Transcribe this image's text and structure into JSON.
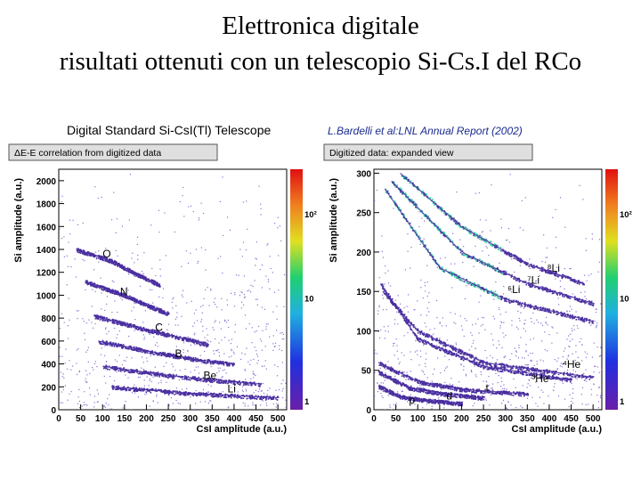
{
  "slide": {
    "title_line1": "Elettronica digitale",
    "title_line2": "risultati ottenuti con un telescopio Si-Cs.I del RCo",
    "subtitle": "Digital Standard Si-CsI(Tl) Telescope",
    "reference": "L.Bardelli et al:LNL Annual Report (2002)"
  },
  "colors": {
    "scatter": "#4a2fa0",
    "scatter_light": "#8a6fd0",
    "band_high": "#2bd0a0",
    "frame": "#000000",
    "panel_header": "#dfdfdf"
  },
  "chart_data": [
    {
      "type": "scatter",
      "title": "ΔE-E correlation from digitized data",
      "xlabel": "CsI amplitude (a.u.)",
      "ylabel": "Si amplitude (a.u.)",
      "xlim": [
        0,
        520
      ],
      "ylim": [
        0,
        2100
      ],
      "xticks": [
        0,
        50,
        100,
        150,
        200,
        250,
        300,
        350,
        400,
        450,
        500
      ],
      "yticks": [
        0,
        200,
        400,
        600,
        800,
        1000,
        1200,
        1400,
        1600,
        1800,
        2000
      ],
      "colorbar_ticks": [
        "1",
        "10",
        "10²"
      ],
      "series": [
        {
          "name": "O",
          "x": [
            40,
            120,
            180,
            230
          ],
          "y": [
            1400,
            1300,
            1180,
            1090
          ]
        },
        {
          "name": "N",
          "x": [
            60,
            150,
            210,
            250
          ],
          "y": [
            1120,
            1000,
            900,
            840
          ]
        },
        {
          "name": "C",
          "x": [
            80,
            200,
            300,
            340
          ],
          "y": [
            820,
            700,
            610,
            570
          ]
        },
        {
          "name": "B",
          "x": [
            90,
            220,
            330,
            400
          ],
          "y": [
            600,
            500,
            430,
            400
          ]
        },
        {
          "name": "Be",
          "x": [
            100,
            250,
            380,
            460
          ],
          "y": [
            380,
            300,
            250,
            225
          ]
        },
        {
          "name": "Li",
          "x": [
            120,
            280,
            420,
            500
          ],
          "y": [
            200,
            150,
            120,
            105
          ]
        }
      ],
      "annotations": [
        {
          "text": "O",
          "x": 100,
          "y": 1330
        },
        {
          "text": "N",
          "x": 140,
          "y": 1000
        },
        {
          "text": "C",
          "x": 220,
          "y": 690
        },
        {
          "text": "B",
          "x": 265,
          "y": 460
        },
        {
          "text": "Be",
          "x": 330,
          "y": 270
        },
        {
          "text": "Li",
          "x": 385,
          "y": 150
        }
      ]
    },
    {
      "type": "scatter",
      "title": "Digitized data: expanded view",
      "xlabel": "CsI amplitude (a.u.)",
      "ylabel": "Si amplitude (a.u.)",
      "xlim": [
        0,
        520
      ],
      "ylim": [
        0,
        305
      ],
      "xticks": [
        0,
        50,
        100,
        150,
        200,
        250,
        300,
        350,
        400,
        450,
        500
      ],
      "yticks": [
        0,
        50,
        100,
        150,
        200,
        250,
        300
      ],
      "colorbar_ticks": [
        "1",
        "10",
        "10²"
      ],
      "series": [
        {
          "name": "8Li",
          "x": [
            60,
            200,
            350,
            480
          ],
          "y": [
            300,
            232,
            185,
            160
          ]
        },
        {
          "name": "7Li",
          "x": [
            40,
            200,
            350,
            500
          ],
          "y": [
            290,
            200,
            160,
            135
          ]
        },
        {
          "name": "6Li",
          "x": [
            25,
            150,
            300,
            500
          ],
          "y": [
            280,
            180,
            140,
            112
          ]
        },
        {
          "name": "4He",
          "x": [
            20,
            100,
            250,
            500
          ],
          "y": [
            150,
            100,
            60,
            41
          ]
        },
        {
          "name": "3He",
          "x": [
            15,
            100,
            250,
            450
          ],
          "y": [
            160,
            90,
            55,
            38
          ]
        },
        {
          "name": "t",
          "x": [
            10,
            100,
            200,
            350
          ],
          "y": [
            60,
            36,
            26,
            20
          ]
        },
        {
          "name": "d",
          "x": [
            10,
            80,
            150,
            250
          ],
          "y": [
            48,
            28,
            21,
            15
          ]
        },
        {
          "name": "p",
          "x": [
            10,
            60,
            120,
            200
          ],
          "y": [
            30,
            17,
            12,
            8
          ]
        }
      ],
      "annotations": [
        {
          "text": "⁸Li",
          "x": 395,
          "y": 175
        },
        {
          "text": "⁷Li",
          "x": 350,
          "y": 160
        },
        {
          "text": "⁶Li",
          "x": 305,
          "y": 148
        },
        {
          "text": "⁴He",
          "x": 430,
          "y": 53
        },
        {
          "text": "³He",
          "x": 360,
          "y": 35
        },
        {
          "text": "t",
          "x": 255,
          "y": 23
        },
        {
          "text": "d",
          "x": 165,
          "y": 13
        },
        {
          "text": "p",
          "x": 80,
          "y": 8
        }
      ]
    }
  ]
}
